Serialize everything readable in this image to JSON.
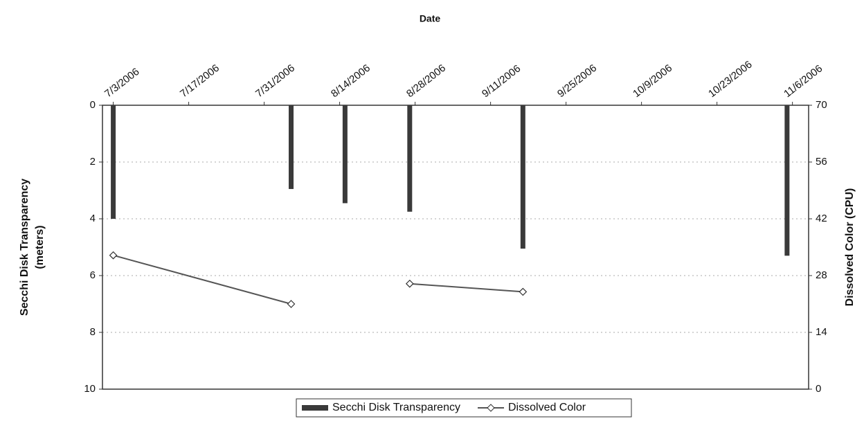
{
  "chart_data": {
    "type": "combo",
    "xlabel": "Date",
    "ylabel": [
      "Secchi Disk Transparency",
      "(meters)"
    ],
    "y2label": "Dissolved Color (CPU)",
    "x": [
      "7/3/2006",
      "8/5/2006",
      "8/15/2006",
      "8/27/2006",
      "9/17/2006",
      "11/5/2006"
    ],
    "xlim": [
      "7/1/2006",
      "11/9/2006"
    ],
    "xticks": [
      "7/3/2006",
      "7/17/2006",
      "7/31/2006",
      "8/14/2006",
      "8/28/2006",
      "9/11/2006",
      "9/25/2006",
      "10/9/2006",
      "10/23/2006",
      "11/6/2006"
    ],
    "ylim": [
      0,
      10
    ],
    "y_reversed": true,
    "yticks": [
      0,
      2,
      4,
      6,
      8,
      10
    ],
    "y2lim": [
      0,
      70
    ],
    "y2ticks": [
      0,
      14,
      28,
      42,
      56,
      70
    ],
    "grid": true,
    "legend": "bottom",
    "series": [
      {
        "name": "Secchi Disk Transparency",
        "type": "bar",
        "color": "#3a3a3a",
        "values": [
          4.0,
          2.95,
          3.45,
          3.75,
          5.05,
          5.3
        ]
      },
      {
        "name": "Dissolved Color",
        "type": "line",
        "axis": "y2",
        "color": "#555555",
        "values": [
          33,
          21,
          null,
          26,
          24,
          null
        ]
      }
    ]
  }
}
